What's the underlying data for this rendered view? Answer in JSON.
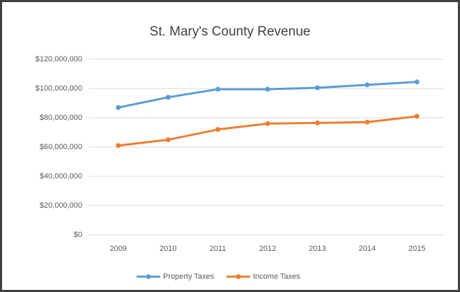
{
  "chart_data": {
    "type": "line",
    "title": "St. Mary's County Revenue",
    "categories": [
      "2009",
      "2010",
      "2011",
      "2012",
      "2013",
      "2014",
      "2015"
    ],
    "series": [
      {
        "name": "Property Taxes",
        "color": "#5b9bd5",
        "values": [
          87000000,
          94000000,
          99500000,
          99500000,
          100500000,
          102500000,
          104500000
        ]
      },
      {
        "name": "Income Taxes",
        "color": "#ed7d31",
        "values": [
          61000000,
          65000000,
          72000000,
          76000000,
          76500000,
          77000000,
          81000000
        ]
      }
    ],
    "ylim": [
      0,
      120000000
    ],
    "yticks": [
      {
        "value": 0,
        "label": "$0"
      },
      {
        "value": 20000000,
        "label": "$20,000,000"
      },
      {
        "value": 40000000,
        "label": "$40,000,000"
      },
      {
        "value": 60000000,
        "label": "$60,000,000"
      },
      {
        "value": 80000000,
        "label": "$80,000,000"
      },
      {
        "value": 100000000,
        "label": "$100,000,000"
      },
      {
        "value": 120000000,
        "label": "$120,000,000"
      }
    ],
    "grid": true,
    "legend": "bottom"
  }
}
